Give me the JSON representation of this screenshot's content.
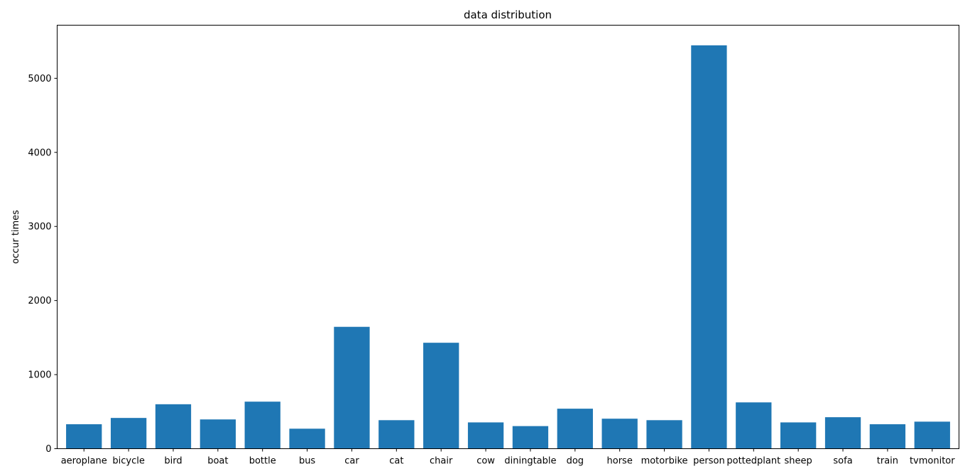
{
  "chart_data": {
    "type": "bar",
    "title": "data distribution",
    "xlabel": "",
    "ylabel": "occur times",
    "categories": [
      "aeroplane",
      "bicycle",
      "bird",
      "boat",
      "bottle",
      "bus",
      "car",
      "cat",
      "chair",
      "cow",
      "diningtable",
      "dog",
      "horse",
      "motorbike",
      "person",
      "pottedplant",
      "sheep",
      "sofa",
      "train",
      "tvmonitor"
    ],
    "values": [
      330,
      415,
      600,
      395,
      635,
      270,
      1645,
      385,
      1430,
      355,
      305,
      540,
      405,
      385,
      5445,
      625,
      355,
      425,
      330,
      365
    ],
    "ylim": [
      0,
      5717
    ],
    "yticks": [
      0,
      1000,
      2000,
      3000,
      4000,
      5000
    ],
    "grid": false,
    "bar_color": "#1f77b4"
  }
}
